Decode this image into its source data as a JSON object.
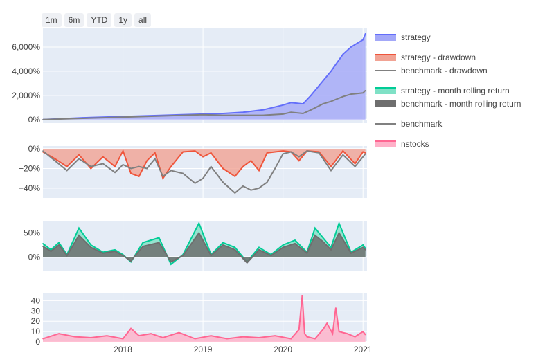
{
  "rangeselector": [
    "1m",
    "6m",
    "YTD",
    "1y",
    "all"
  ],
  "legend": [
    {
      "label": "strategy",
      "color": "#636efa",
      "fill": "#a3a8f8",
      "kind": "area"
    },
    {
      "label": "strategy - drawdown",
      "color": "#ef553b",
      "fill": "#f1a394",
      "kind": "area"
    },
    {
      "label": "benchmark - drawdown",
      "color": "#808080",
      "kind": "line"
    },
    {
      "label": "strategy - month rolling return",
      "color": "#00cc96",
      "fill": "#7fe1c6",
      "kind": "area"
    },
    {
      "label": "benchmark - month rolling return",
      "color": "#6e6e6e",
      "fill": "#6e6e6e",
      "kind": "area"
    },
    {
      "label": "benchmark",
      "color": "#808080",
      "kind": "line"
    },
    {
      "label": "nstocks",
      "color": "#ff6692",
      "fill": "#ffb0c8",
      "kind": "area"
    }
  ],
  "chart_data": [
    {
      "type": "area",
      "panel": "equity",
      "xlim": [
        2017.0,
        2021.05
      ],
      "ylim": [
        -300,
        7600
      ],
      "yticks": [
        0,
        2000,
        4000,
        6000
      ],
      "ytick_labels": [
        "0%",
        "2,000%",
        "4,000%",
        "6,000%"
      ],
      "x": [
        2017.0,
        2017.5,
        2018.0,
        2018.5,
        2019.0,
        2019.25,
        2019.5,
        2019.75,
        2020.0,
        2020.1,
        2020.25,
        2020.35,
        2020.5,
        2020.6,
        2020.75,
        2020.85,
        2021.0,
        2021.03
      ],
      "series": [
        {
          "name": "strategy",
          "values": [
            0,
            150,
            250,
            350,
            450,
            500,
            600,
            800,
            1200,
            1400,
            1300,
            2000,
            3200,
            4000,
            5400,
            6000,
            6600,
            7100
          ]
        },
        {
          "name": "benchmark",
          "values": [
            0,
            100,
            200,
            300,
            400,
            350,
            350,
            350,
            450,
            600,
            500,
            800,
            1300,
            1500,
            1900,
            2100,
            2200,
            2400
          ]
        }
      ]
    },
    {
      "type": "area",
      "panel": "drawdown",
      "xlim": [
        2017.0,
        2021.05
      ],
      "ylim": [
        -50,
        3
      ],
      "yticks": [
        0,
        -20,
        -40
      ],
      "ytick_labels": [
        "0%",
        "−20%",
        "−40%"
      ],
      "x": [
        2017.0,
        2017.15,
        2017.3,
        2017.45,
        2017.6,
        2017.75,
        2017.9,
        2018.0,
        2018.1,
        2018.2,
        2018.3,
        2018.4,
        2018.5,
        2018.6,
        2018.75,
        2018.9,
        2019.0,
        2019.1,
        2019.25,
        2019.4,
        2019.5,
        2019.6,
        2019.7,
        2019.8,
        2019.9,
        2020.0,
        2020.1,
        2020.2,
        2020.3,
        2020.45,
        2020.6,
        2020.75,
        2020.9,
        2021.0,
        2021.03
      ],
      "series": [
        {
          "name": "strategy - drawdown",
          "values": [
            -3,
            -10,
            -18,
            -6,
            -20,
            -8,
            -18,
            -2,
            -25,
            -28,
            -12,
            -4,
            -30,
            -18,
            -3,
            -2,
            -8,
            -4,
            -20,
            -28,
            -18,
            -12,
            -22,
            -4,
            -3,
            -2,
            -3,
            -12,
            -2,
            -3,
            -18,
            -2,
            -15,
            -3,
            -4
          ]
        },
        {
          "name": "benchmark - drawdown",
          "values": [
            -2,
            -12,
            -22,
            -10,
            -18,
            -15,
            -24,
            -16,
            -20,
            -18,
            -20,
            -10,
            -28,
            -22,
            -25,
            -35,
            -30,
            -18,
            -34,
            -45,
            -38,
            -42,
            -40,
            -34,
            -20,
            -5,
            -3,
            -8,
            -2,
            -4,
            -22,
            -6,
            -18,
            -8,
            -5
          ]
        }
      ]
    },
    {
      "type": "area",
      "panel": "rolling",
      "xlim": [
        2017.0,
        2021.05
      ],
      "ylim": [
        -28,
        75
      ],
      "yticks": [
        0,
        50
      ],
      "ytick_labels": [
        "0%",
        "50%"
      ],
      "x": [
        2017.0,
        2017.1,
        2017.2,
        2017.3,
        2017.45,
        2017.6,
        2017.75,
        2017.9,
        2018.0,
        2018.1,
        2018.25,
        2018.45,
        2018.6,
        2018.75,
        2018.95,
        2019.1,
        2019.25,
        2019.4,
        2019.55,
        2019.7,
        2019.85,
        2020.0,
        2020.15,
        2020.3,
        2020.4,
        2020.5,
        2020.6,
        2020.7,
        2020.85,
        2021.0,
        2021.03
      ],
      "series": [
        {
          "name": "strategy - month rolling return",
          "values": [
            28,
            15,
            30,
            5,
            60,
            25,
            10,
            15,
            5,
            -10,
            30,
            40,
            -15,
            5,
            70,
            5,
            30,
            20,
            -10,
            20,
            5,
            25,
            35,
            10,
            60,
            40,
            20,
            70,
            10,
            25,
            18
          ]
        },
        {
          "name": "benchmark - month rolling return",
          "values": [
            22,
            12,
            25,
            3,
            45,
            20,
            8,
            12,
            3,
            -8,
            22,
            30,
            -10,
            3,
            50,
            3,
            25,
            15,
            -12,
            15,
            3,
            20,
            28,
            8,
            45,
            32,
            15,
            50,
            8,
            20,
            15
          ]
        }
      ]
    },
    {
      "type": "area",
      "panel": "nstocks",
      "xlim": [
        2017.0,
        2021.05
      ],
      "ylim": [
        0,
        47
      ],
      "yticks": [
        0,
        10,
        20,
        30,
        40
      ],
      "ytick_labels": [
        "0",
        "10",
        "20",
        "30",
        "40"
      ],
      "xticks": [
        2018,
        2019,
        2020,
        2021
      ],
      "xtick_labels": [
        "2018",
        "2019",
        "2020",
        "2021"
      ],
      "x": [
        2017.0,
        2017.2,
        2017.4,
        2017.6,
        2017.8,
        2018.0,
        2018.1,
        2018.2,
        2018.35,
        2018.5,
        2018.7,
        2018.9,
        2019.1,
        2019.3,
        2019.5,
        2019.7,
        2019.9,
        2020.1,
        2020.2,
        2020.24,
        2020.27,
        2020.3,
        2020.4,
        2020.5,
        2020.55,
        2020.62,
        2020.66,
        2020.7,
        2020.8,
        2020.9,
        2021.0,
        2021.03
      ],
      "series": [
        {
          "name": "nstocks",
          "values": [
            3,
            8,
            5,
            4,
            6,
            3,
            13,
            6,
            8,
            4,
            9,
            3,
            6,
            3,
            5,
            4,
            6,
            3,
            12,
            45,
            8,
            5,
            3,
            12,
            18,
            8,
            33,
            10,
            8,
            5,
            10,
            7
          ]
        }
      ]
    }
  ]
}
